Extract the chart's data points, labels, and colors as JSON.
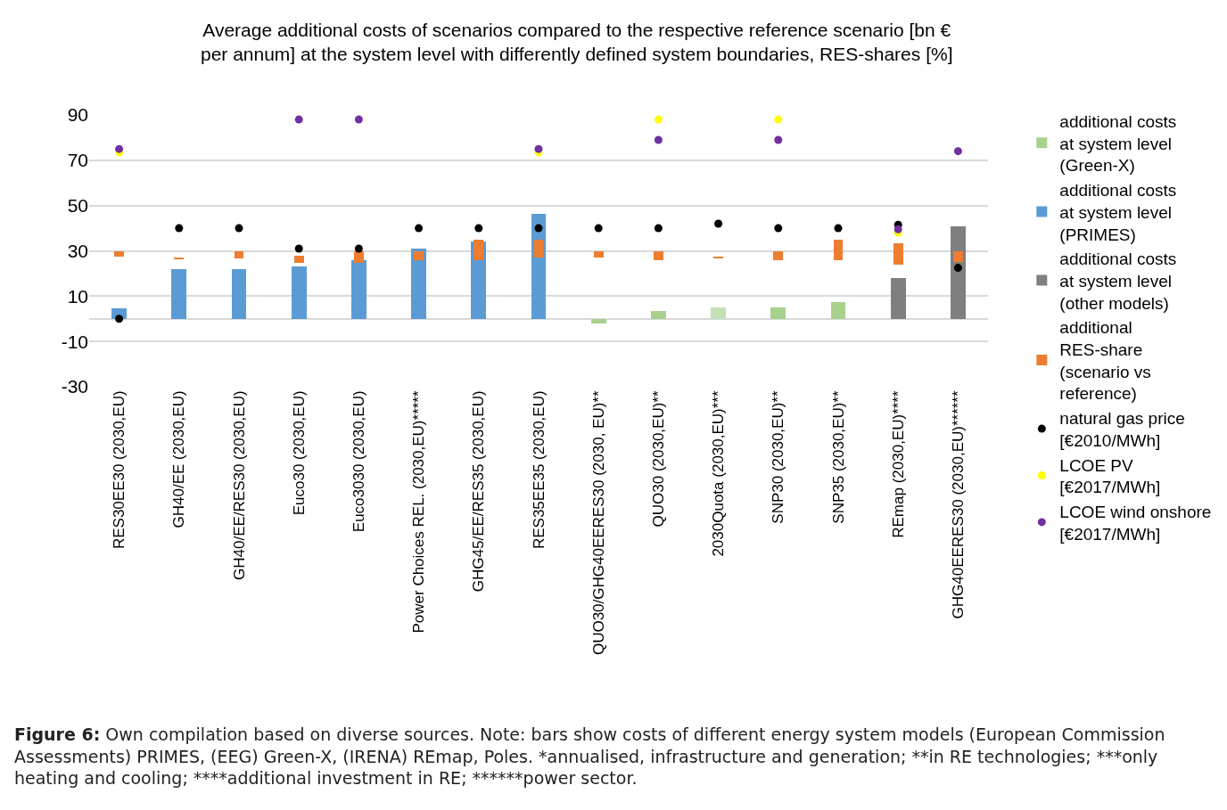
{
  "chart_data": {
    "type": "bar",
    "title": "Average additional costs of scenarios compared to the respective reference scenario [bn € per annum] at the system level with differently defined system boundaries, RES-shares [%]",
    "categories": [
      "RES30EE30 (2030,EU)",
      "GH40/EE (2030,EU)",
      "GH40/EE/RES30 (2030,EU)",
      "Euco30 (2030,EU)",
      "Euco3030 (2030,EU)",
      "Power Choices REL. (2030,EU)*****",
      "GHG45/EE/RES35 (2030,EU)",
      "RES35EE35 (2030,EU)",
      "QUO30/GHG40EERES30 (2030, EU)**",
      "QUO30 (2030,EU)**",
      "2030Quota (2030,EU)***",
      "SNP30 (2030,EU)**",
      "SNP35 (2030,EU)**",
      "REmap (2030,EU)****",
      "GHG40EERES30 (2030,EU)******"
    ],
    "series": [
      {
        "name": "additional costs at system level (Green-X)",
        "colors": [
          "#a9d18e",
          "#a9d18e",
          "#a9d18e",
          "#a9d18e",
          "#a9d18e",
          "#a9d18e",
          "#a9d18e",
          "#a9d18e",
          "#a9d18e",
          "#a9d18e",
          "#c5e0b4",
          "#a9d18e",
          "#a9d18e",
          "#a9d18e",
          "#a9d18e"
        ],
        "values": [
          null,
          null,
          null,
          null,
          null,
          null,
          null,
          null,
          -2,
          3.5,
          5,
          5,
          7.5,
          null,
          null
        ]
      },
      {
        "name": "additional costs at system level (PRIMES)",
        "color": "#5b9bd5",
        "values": [
          4.5,
          22,
          22,
          23,
          26,
          31,
          34,
          46.5,
          null,
          null,
          null,
          null,
          null,
          null,
          null
        ]
      },
      {
        "name": "additional costs at system level (other models)",
        "color": "#7f7f7f",
        "values": [
          null,
          null,
          null,
          null,
          null,
          null,
          null,
          null,
          null,
          null,
          null,
          null,
          null,
          18,
          41
        ]
      },
      {
        "name": "additional RES-share (scenario vs reference)",
        "color": "#ed7d31",
        "base": [
          27.5,
          26.3,
          26.5,
          24.5,
          24.5,
          26,
          26,
          27,
          27,
          26,
          26.8,
          26,
          26,
          24,
          25
        ],
        "values": [
          2.5,
          0.6,
          3.5,
          3.5,
          5.5,
          4,
          9,
          8,
          3,
          4,
          0.6,
          4,
          9,
          9.5,
          5
        ]
      },
      {
        "name": "natural gas price [€2010/MWh]",
        "type": "scatter",
        "color": "#000000",
        "values": [
          0,
          40,
          40,
          31,
          31,
          40,
          40,
          40,
          40,
          40,
          42,
          40,
          40,
          41.5,
          22.5
        ]
      },
      {
        "name": "LCOE PV [€2017/MWh]",
        "type": "scatter",
        "color": "#ffff00",
        "values": [
          73.5,
          null,
          null,
          null,
          null,
          null,
          null,
          73.5,
          null,
          88,
          null,
          88,
          null,
          38,
          null
        ]
      },
      {
        "name": "LCOE wind onshore [€2017/MWh]",
        "type": "scatter",
        "color": "#7030a0",
        "values": [
          75,
          null,
          null,
          88,
          88,
          null,
          null,
          75,
          null,
          79,
          null,
          79,
          null,
          39.5,
          74
        ]
      }
    ],
    "ylim": [
      -30,
      90
    ],
    "yticks": [
      90,
      70,
      50,
      30,
      10,
      -10,
      -30
    ],
    "grid": "y",
    "legend": "right",
    "marker": "circle",
    "annotations": [
      "Figure 6: Own compilation based on diverse sources. Note: bars show costs of different energy system models (European Commission Assessments) PRIMES, (EEG) Green-X, (IRENA) REmap, Poles. *annualised, infrastructure and generation; **in RE technologies; ***only heating and cooling; ****additional investment in RE; ******power sector."
    ]
  }
}
